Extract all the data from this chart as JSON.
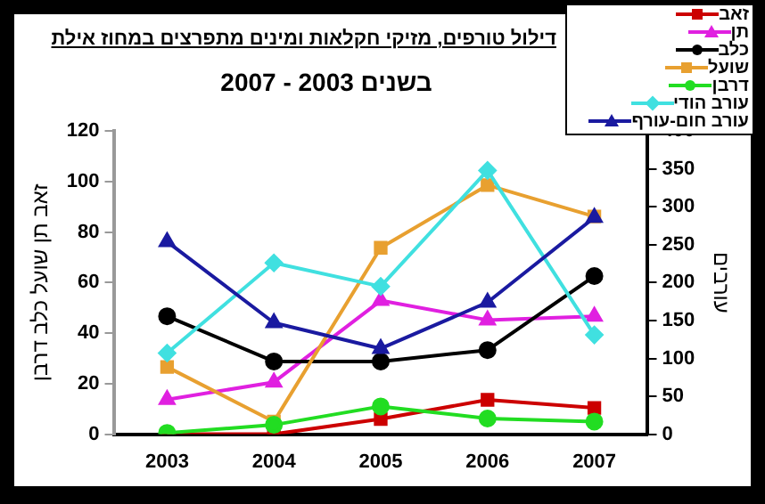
{
  "chart_data": {
    "type": "line",
    "title": "דילול טורפים, מזיקי חקלאות ומינים מתפרצים במחוז אילת",
    "subtitle": "בשנים 2003 - 2007",
    "ylabel": "זאב תן שועל כלב דרבן",
    "y2label": "עורבים",
    "categories": [
      "2003",
      "2004",
      "2005",
      "2006",
      "2007"
    ],
    "series": [
      {
        "name": "זאב",
        "color": "#cc0000",
        "marker": "square",
        "values": [
          0,
          0,
          6,
          13.6,
          10.4
        ]
      },
      {
        "name": "תן",
        "color": "#e020e0",
        "marker": "triangle",
        "values": [
          13.7,
          20.6,
          52.9,
          45.2,
          46.7
        ]
      },
      {
        "name": "כלב",
        "color": "#000000",
        "marker": "circle",
        "values": [
          46.7,
          28.8,
          28.8,
          33.3,
          62.6
        ]
      },
      {
        "name": "שועל",
        "color": "#e8a030",
        "marker": "square",
        "values": [
          26.6,
          5,
          73.8,
          98.6,
          86.2
        ]
      },
      {
        "name": "דרבן",
        "color": "#22dd22",
        "marker": "circle",
        "values": [
          0.5,
          3.7,
          11,
          6.2,
          5
        ]
      },
      {
        "name": "עורב הודי",
        "color": "#40e0e0",
        "marker": "diamond",
        "axis": "y2",
        "values": [
          107,
          226,
          195,
          348,
          131
        ]
      },
      {
        "name": "עורב חום-עורף",
        "color": "#1a1aa0",
        "marker": "triangle",
        "axis": "y2",
        "values": [
          254,
          147,
          113,
          174,
          286
        ]
      }
    ],
    "ylim": [
      0,
      120
    ],
    "yticks": [
      0,
      20,
      40,
      60,
      80,
      100,
      120
    ],
    "y2lim": [
      0,
      400
    ],
    "y2ticks": [
      0,
      50,
      100,
      150,
      200,
      250,
      300,
      350,
      400
    ],
    "grid": false,
    "legend": "top right"
  }
}
